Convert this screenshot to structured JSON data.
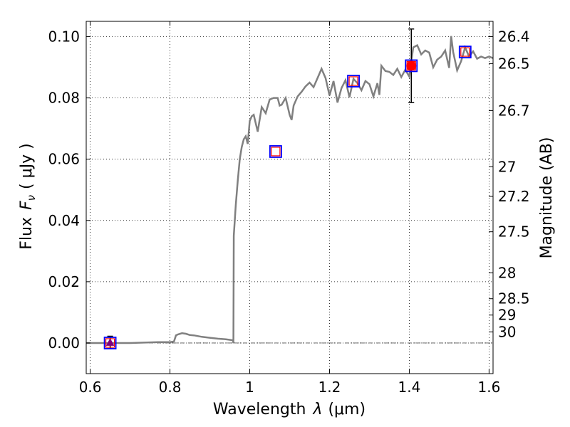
{
  "chart_data": {
    "type": "line",
    "xlabel_text": "Wavelength",
    "xlabel_symbol": "λ",
    "xlabel_unit": "(μm)",
    "ylabel_text": "Flux",
    "ylabel_symbol": "F",
    "ylabel_subscript": "ν",
    "ylabel_unit": "( μJy )",
    "y2label": "Magnitude (AB)",
    "xlim": [
      0.59,
      1.61
    ],
    "ylim": [
      -0.01,
      0.105
    ],
    "xticks": [
      {
        "value": 0.6,
        "label": "0.6"
      },
      {
        "value": 0.8,
        "label": "0.8"
      },
      {
        "value": 1.0,
        "label": "1"
      },
      {
        "value": 1.2,
        "label": "1.2"
      },
      {
        "value": 1.4,
        "label": "1.4"
      },
      {
        "value": 1.6,
        "label": "1.6"
      }
    ],
    "yticks": [
      {
        "value": 0.0,
        "label": "0.00"
      },
      {
        "value": 0.02,
        "label": "0.02"
      },
      {
        "value": 0.04,
        "label": "0.04"
      },
      {
        "value": 0.06,
        "label": "0.06"
      },
      {
        "value": 0.08,
        "label": "0.08"
      },
      {
        "value": 0.1,
        "label": "0.10"
      }
    ],
    "mag_ticks": [
      {
        "mag": 26.4,
        "label": "26.4"
      },
      {
        "mag": 26.5,
        "label": "26.5"
      },
      {
        "mag": 26.7,
        "label": "26.7"
      },
      {
        "mag": 27.0,
        "label": "27"
      },
      {
        "mag": 27.2,
        "label": "27.2"
      },
      {
        "mag": 27.5,
        "label": "27.5"
      },
      {
        "mag": 28.0,
        "label": "28"
      },
      {
        "mag": 28.5,
        "label": "28.5"
      },
      {
        "mag": 29.0,
        "label": "29"
      },
      {
        "mag": 30.0,
        "label": "30"
      }
    ],
    "model_spectrum": {
      "name": "SED model",
      "color": "#808080",
      "x": [
        0.59,
        0.7,
        0.77,
        0.8,
        0.81,
        0.815,
        0.82,
        0.83,
        0.84,
        0.85,
        0.86,
        0.88,
        0.9,
        0.92,
        0.94,
        0.958,
        0.959,
        0.96,
        0.965,
        0.97,
        0.975,
        0.98,
        0.985,
        0.99,
        0.995,
        1.0,
        1.005,
        1.01,
        1.02,
        1.03,
        1.04,
        1.05,
        1.06,
        1.07,
        1.075,
        1.08,
        1.09,
        1.1,
        1.105,
        1.11,
        1.12,
        1.13,
        1.14,
        1.15,
        1.16,
        1.17,
        1.18,
        1.19,
        1.2,
        1.21,
        1.22,
        1.23,
        1.24,
        1.25,
        1.26,
        1.27,
        1.28,
        1.29,
        1.3,
        1.31,
        1.32,
        1.325,
        1.33,
        1.34,
        1.35,
        1.36,
        1.37,
        1.38,
        1.39,
        1.4,
        1.41,
        1.42,
        1.43,
        1.44,
        1.45,
        1.46,
        1.47,
        1.48,
        1.49,
        1.5,
        1.505,
        1.51,
        1.52,
        1.53,
        1.54,
        1.55,
        1.56,
        1.57,
        1.58,
        1.59,
        1.6,
        1.61
      ],
      "y": [
        0.0,
        0.0,
        0.0003,
        0.0003,
        0.0005,
        0.0025,
        0.0028,
        0.0032,
        0.003,
        0.0026,
        0.0025,
        0.002,
        0.0017,
        0.0014,
        0.0012,
        0.0009,
        0.0,
        0.035,
        0.045,
        0.053,
        0.06,
        0.064,
        0.0665,
        0.0675,
        0.065,
        0.0725,
        0.074,
        0.0745,
        0.069,
        0.077,
        0.075,
        0.0795,
        0.08,
        0.08,
        0.0775,
        0.0778,
        0.08,
        0.0745,
        0.0728,
        0.0775,
        0.0805,
        0.082,
        0.0838,
        0.085,
        0.0835,
        0.0865,
        0.0895,
        0.0865,
        0.0808,
        0.0855,
        0.0785,
        0.0832,
        0.0858,
        0.0802,
        0.0862,
        0.0848,
        0.0825,
        0.0855,
        0.0845,
        0.0805,
        0.0848,
        0.081,
        0.0905,
        0.0888,
        0.0885,
        0.0875,
        0.0895,
        0.0868,
        0.0892,
        0.087,
        0.0965,
        0.0972,
        0.0942,
        0.0955,
        0.0948,
        0.09,
        0.0925,
        0.0935,
        0.0955,
        0.0898,
        0.1002,
        0.095,
        0.089,
        0.092,
        0.0965,
        0.0935,
        0.0952,
        0.0928,
        0.0935,
        0.093,
        0.0935,
        0.093
      ]
    },
    "model_points": [
      {
        "x": 0.65,
        "y": 0.0
      },
      {
        "x": 1.065,
        "y": 0.0625
      },
      {
        "x": 1.26,
        "y": 0.0855
      },
      {
        "x": 1.405,
        "y": 0.0905
      },
      {
        "x": 1.54,
        "y": 0.095
      }
    ],
    "model_points_style": {
      "inner_color": "#ff0000",
      "outer_color": "#0000ff"
    },
    "observations": [
      {
        "x": 0.65,
        "y": 0.0002,
        "yerr": 0.002,
        "marker": "triangle",
        "color": "#800080"
      },
      {
        "x": 1.405,
        "y": 0.0905,
        "yerr": 0.012,
        "marker": "circle",
        "color": "#ff0000"
      }
    ],
    "zero_line": {
      "y": 0.0,
      "style": "dashdot"
    },
    "grid": true,
    "legend": "none"
  }
}
